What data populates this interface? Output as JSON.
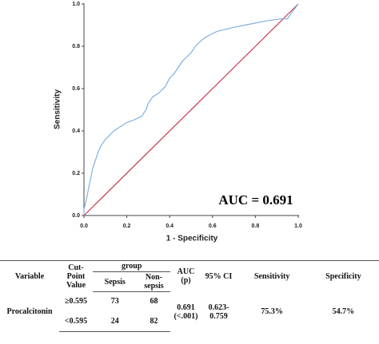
{
  "chart_data": {
    "type": "line",
    "y_label": "Sensitivity",
    "x_label": "1 - Specificity",
    "annotation": "AUC = 0.691",
    "xlim": [
      0,
      1
    ],
    "ylim": [
      0,
      1
    ],
    "xticks": [
      {
        "value": 0,
        "label": "0.0"
      },
      {
        "value": 0.2,
        "label": "0.2"
      },
      {
        "value": 0.4,
        "label": "0.4"
      },
      {
        "value": 0.6,
        "label": "0.6"
      },
      {
        "value": 0.8,
        "label": "0.8"
      },
      {
        "value": 1,
        "label": "1.0"
      }
    ],
    "yticks": [
      {
        "value": 0,
        "label": "0.0"
      },
      {
        "value": 0.2,
        "label": "0.2"
      },
      {
        "value": 0.4,
        "label": "0.4"
      },
      {
        "value": 0.6,
        "label": "0.6"
      },
      {
        "value": 0.8,
        "label": "0.8"
      },
      {
        "value": 1,
        "label": "1.0"
      }
    ],
    "series": [
      {
        "color": "#7eb1e0",
        "x": [
          0,
          0,
          0.01,
          0.02,
          0.03,
          0.04,
          0.05,
          0.06,
          0.07,
          0.08,
          0.1,
          0.12,
          0.14,
          0.17,
          0.2,
          0.23,
          0.25,
          0.27,
          0.29,
          0.3,
          0.32,
          0.35,
          0.38,
          0.39,
          0.4,
          0.42,
          0.44,
          0.46,
          0.48,
          0.5,
          0.52,
          0.55,
          0.58,
          0.62,
          0.66,
          0.7,
          0.75,
          0.8,
          0.85,
          0.92,
          0.95,
          0.97,
          1
        ],
        "values": [
          0,
          0.03,
          0.07,
          0.12,
          0.17,
          0.22,
          0.25,
          0.28,
          0.31,
          0.33,
          0.36,
          0.38,
          0.4,
          0.42,
          0.44,
          0.45,
          0.46,
          0.47,
          0.5,
          0.53,
          0.56,
          0.58,
          0.61,
          0.63,
          0.65,
          0.67,
          0.7,
          0.73,
          0.75,
          0.77,
          0.8,
          0.83,
          0.85,
          0.87,
          0.88,
          0.89,
          0.9,
          0.91,
          0.92,
          0.93,
          0.93,
          0.96,
          1
        ]
      }
    ],
    "reference_line": {
      "color": "#c8374a",
      "x": [
        0,
        1
      ],
      "values": [
        0,
        1
      ]
    }
  },
  "table": {
    "headers": {
      "variable": "Variable",
      "cut": "Cut-Point Value",
      "group": "group",
      "sepsis": "Sepsis",
      "nonsepsis": "Non-sepsis",
      "auc": "AUC (p)",
      "ci": "95% CI",
      "sens": "Sensitivity",
      "spec": "Specificity"
    },
    "row": {
      "variable": "Procalcitonin",
      "cuts": [
        {
          "cut": "≥0.595",
          "sepsis": "73",
          "nonsepsis": "68"
        },
        {
          "cut": "<0.595",
          "sepsis": "24",
          "nonsepsis": "82"
        }
      ],
      "auc": "0.691",
      "p": "(<.001)",
      "ci": "0.623-0.759",
      "sens": "75.3%",
      "spec": "54.7%"
    }
  }
}
